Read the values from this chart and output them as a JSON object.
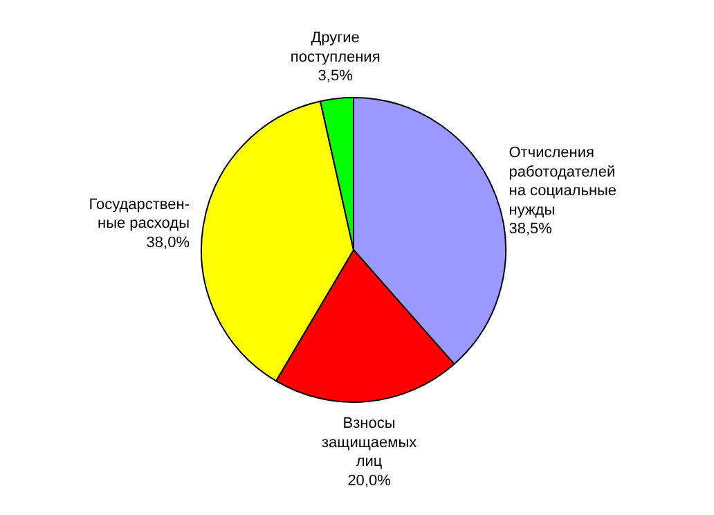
{
  "chart_data": {
    "type": "pie",
    "categories": [
      "Отчисления\nработодателей\nна социальные\nнужды",
      "Взносы\nзащищаемых\nлиц",
      "Государствен-\nные расходы",
      "Другие\nпоступления"
    ],
    "values": [
      38.5,
      20.0,
      38.0,
      3.5
    ],
    "value_labels": [
      "38,5%",
      "20,0%",
      "38,0%",
      "3,5%"
    ],
    "colors": [
      "#9999ff",
      "#ff0000",
      "#ffff00",
      "#00ff00"
    ]
  }
}
